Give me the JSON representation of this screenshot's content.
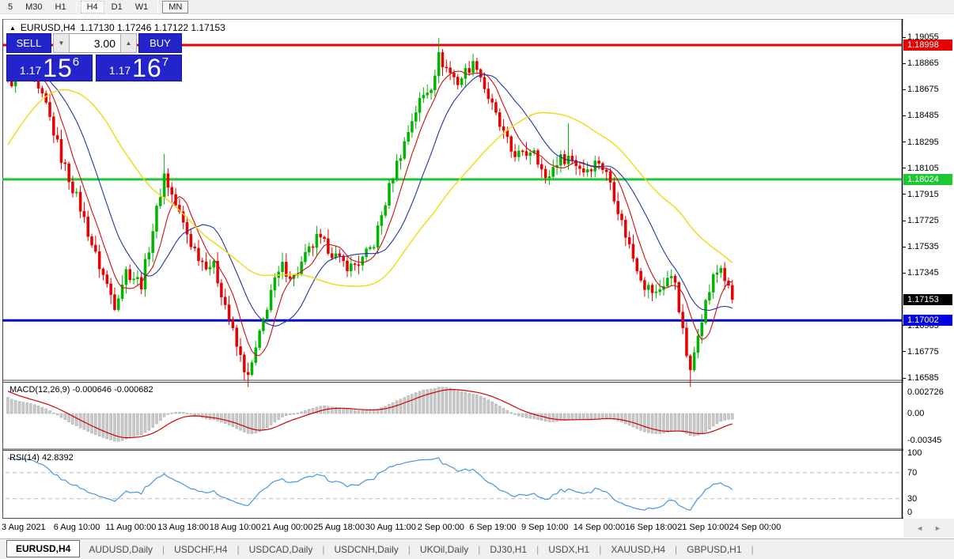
{
  "toolbar": {
    "timeframes": [
      {
        "label": "5"
      },
      {
        "label": "M30"
      },
      {
        "label": "H1"
      },
      {
        "label": "H4",
        "state": "current"
      },
      {
        "label": "D1"
      },
      {
        "label": "W1"
      },
      {
        "label": "MN",
        "state": "pressed"
      }
    ],
    "separators_after": [
      "H1",
      "W1"
    ]
  },
  "chart_header": {
    "collapse_icon": "▲",
    "symbol": "EURUSD,H4",
    "ohlc": "1.17130 1.17246 1.17122 1.17153"
  },
  "trade_panel": {
    "sell_label": "SELL",
    "buy_label": "BUY",
    "volume": "3.00",
    "spinner_down_icon": "▼",
    "spinner_up_icon": "▲",
    "sell_price": {
      "prefix": "1.17",
      "big": "15",
      "sup": "6"
    },
    "buy_price": {
      "prefix": "1.17",
      "big": "16",
      "sup": "7"
    },
    "panel_color": "#2424cc"
  },
  "price_axis": {
    "labels": [
      {
        "text": "1.19055",
        "price": 1.19055
      },
      {
        "text": "1.18865",
        "price": 1.18865
      },
      {
        "text": "1.18675",
        "price": 1.18675
      },
      {
        "text": "1.18485",
        "price": 1.18485
      },
      {
        "text": "1.18295",
        "price": 1.18295
      },
      {
        "text": "1.18105",
        "price": 1.18105
      },
      {
        "text": "1.17915",
        "price": 1.17915
      },
      {
        "text": "1.17725",
        "price": 1.17725
      },
      {
        "text": "1.17535",
        "price": 1.17535
      },
      {
        "text": "1.17345",
        "price": 1.17345
      },
      {
        "text": "1.16965",
        "price": 1.16965
      },
      {
        "text": "1.16775",
        "price": 1.16775
      },
      {
        "text": "1.16585",
        "price": 1.16585
      }
    ],
    "badges": [
      {
        "text": "1.18998",
        "price": 1.18998,
        "bg": "#e60000",
        "fg": "#ffffff"
      },
      {
        "text": "1.18024",
        "price": 1.18024,
        "bg": "#1ec832",
        "fg": "#ffffff"
      },
      {
        "text": "1.17153",
        "price": 1.17153,
        "bg": "#000000",
        "fg": "#ffffff"
      },
      {
        "text": "1.17002",
        "price": 1.17002,
        "bg": "#0000e0",
        "fg": "#ffffff"
      }
    ]
  },
  "macd_panel": {
    "label": "MACD(12,26,9) -0.000646 -0.000682",
    "axis_labels": [
      {
        "text": "0.002726",
        "value": 0.002726
      },
      {
        "text": "0.00",
        "value": 0.0
      },
      {
        "text": "-0.00345",
        "value": -0.00345
      }
    ]
  },
  "rsi_panel": {
    "label": "RSI(14) 42.8392",
    "axis_labels": [
      {
        "text": "100",
        "value": 100
      },
      {
        "text": "70",
        "value": 70
      },
      {
        "text": "30",
        "value": 30
      },
      {
        "text": "0",
        "value": 0
      }
    ],
    "levels": [
      70,
      30
    ]
  },
  "date_axis": {
    "labels": [
      "3 Aug 2021",
      "6 Aug 10:00",
      "11 Aug 00:00",
      "13 Aug 18:00",
      "18 Aug 10:00",
      "21 Aug 00:00",
      "25 Aug 18:00",
      "30 Aug 11:00",
      "2 Sep 00:00",
      "6 Sep 19:00",
      "9 Sep 10:00",
      "14 Sep 00:00",
      "16 Sep 18:00",
      "21 Sep 10:00",
      "24 Sep 00:00"
    ],
    "scroll_left_icon": "◄",
    "scroll_right_icon": "►"
  },
  "tabs": {
    "active": "EURUSD,H4",
    "items": [
      "EURUSD,H4",
      "AUDUSD,Daily",
      "USDCHF,H4",
      "USDCAD,Daily",
      "USDCNH,Daily",
      "UKOil,Daily",
      "DJ30,H1",
      "USDX,H1",
      "XAUUSD,H4",
      "GBPUSD,H1"
    ]
  },
  "chart_data": {
    "type": "candlestick",
    "symbol": "EURUSD",
    "timeframe": "H4",
    "price_range": {
      "top": 1.19055,
      "bottom": 1.16585
    },
    "last_price": 1.17153,
    "horizontal_lines": [
      {
        "price": 1.18998,
        "color": "#e60000"
      },
      {
        "price": 1.18024,
        "color": "#1ec832"
      },
      {
        "price": 1.17002,
        "color": "#0000cd"
      }
    ],
    "candle_count": 191,
    "waypoints": [
      [
        0,
        1.1872
      ],
      [
        5,
        1.188
      ],
      [
        10,
        1.1856
      ],
      [
        14,
        1.1818
      ],
      [
        19,
        1.1782
      ],
      [
        23,
        1.1747
      ],
      [
        28,
        1.1712
      ],
      [
        31,
        1.1736
      ],
      [
        35,
        1.1727
      ],
      [
        41,
        1.1806
      ],
      [
        43,
        1.1791
      ],
      [
        48,
        1.1756
      ],
      [
        51,
        1.1743
      ],
      [
        54,
        1.1739
      ],
      [
        57,
        1.1712
      ],
      [
        60,
        1.1681
      ],
      [
        63,
        1.1658
      ],
      [
        66,
        1.1689
      ],
      [
        69,
        1.1722
      ],
      [
        72,
        1.1739
      ],
      [
        75,
        1.1731
      ],
      [
        78,
        1.1746
      ],
      [
        81,
        1.1759
      ],
      [
        84,
        1.1753
      ],
      [
        87,
        1.1743
      ],
      [
        90,
        1.1739
      ],
      [
        93,
        1.1744
      ],
      [
        96,
        1.1756
      ],
      [
        98,
        1.1776
      ],
      [
        101,
        1.1806
      ],
      [
        104,
        1.1829
      ],
      [
        106,
        1.1846
      ],
      [
        108,
        1.1859
      ],
      [
        111,
        1.1871
      ],
      [
        113,
        1.1891
      ],
      [
        115,
        1.1883
      ],
      [
        118,
        1.1873
      ],
      [
        121,
        1.1884
      ],
      [
        123,
        1.1886
      ],
      [
        125,
        1.1869
      ],
      [
        129,
        1.1841
      ],
      [
        132,
        1.1823
      ],
      [
        135,
        1.1819
      ],
      [
        138,
        1.1826
      ],
      [
        141,
        1.1801
      ],
      [
        144,
        1.1816
      ],
      [
        147,
        1.1819
      ],
      [
        151,
        1.1809
      ],
      [
        155,
        1.1816
      ],
      [
        158,
        1.1801
      ],
      [
        161,
        1.1771
      ],
      [
        164,
        1.1746
      ],
      [
        167,
        1.1726
      ],
      [
        170,
        1.1719
      ],
      [
        173,
        1.1731
      ],
      [
        175,
        1.1729
      ],
      [
        177,
        1.1691
      ],
      [
        179,
        1.1661
      ],
      [
        181,
        1.1693
      ],
      [
        183,
        1.1713
      ],
      [
        185,
        1.1731
      ],
      [
        187,
        1.1739
      ],
      [
        189,
        1.1722
      ],
      [
        190,
        1.17153
      ]
    ],
    "spikes": [
      [
        41,
        "high",
        1.1821
      ],
      [
        63,
        "low",
        1.1652
      ],
      [
        113,
        "high",
        1.1905
      ],
      [
        147,
        "high",
        1.1843
      ],
      [
        179,
        "low",
        1.1652
      ]
    ],
    "prehistory": {
      "bars": 40,
      "rise_to": 1.1905,
      "rise_peak_at": 28,
      "end": 1.1874,
      "start": 1.169
    },
    "moving_averages": [
      {
        "name": "ma-fast",
        "window": 7,
        "color": "#cc1111",
        "width": 1.1
      },
      {
        "name": "ma-mid",
        "window": 16,
        "color": "#1f35a8",
        "width": 1.1
      },
      {
        "name": "ma-slow",
        "window": 40,
        "color": "#efd912",
        "width": 1.4
      }
    ],
    "macd": {
      "fast": 12,
      "slow": 26,
      "signal": 9,
      "main_value": -0.000646,
      "signal_value": -0.000682,
      "histogram_color": "#c9c9c9",
      "histogram_stroke": "#a8a8a8",
      "signal_color": "#d40000"
    },
    "rsi": {
      "period": 14,
      "value": 42.8392,
      "color": "#4596e0",
      "level_color": "#bdbdbd"
    },
    "colors": {
      "bull": "#00b400",
      "bear": "#e60000",
      "axis": "#000000",
      "background": "#ffffff"
    }
  }
}
